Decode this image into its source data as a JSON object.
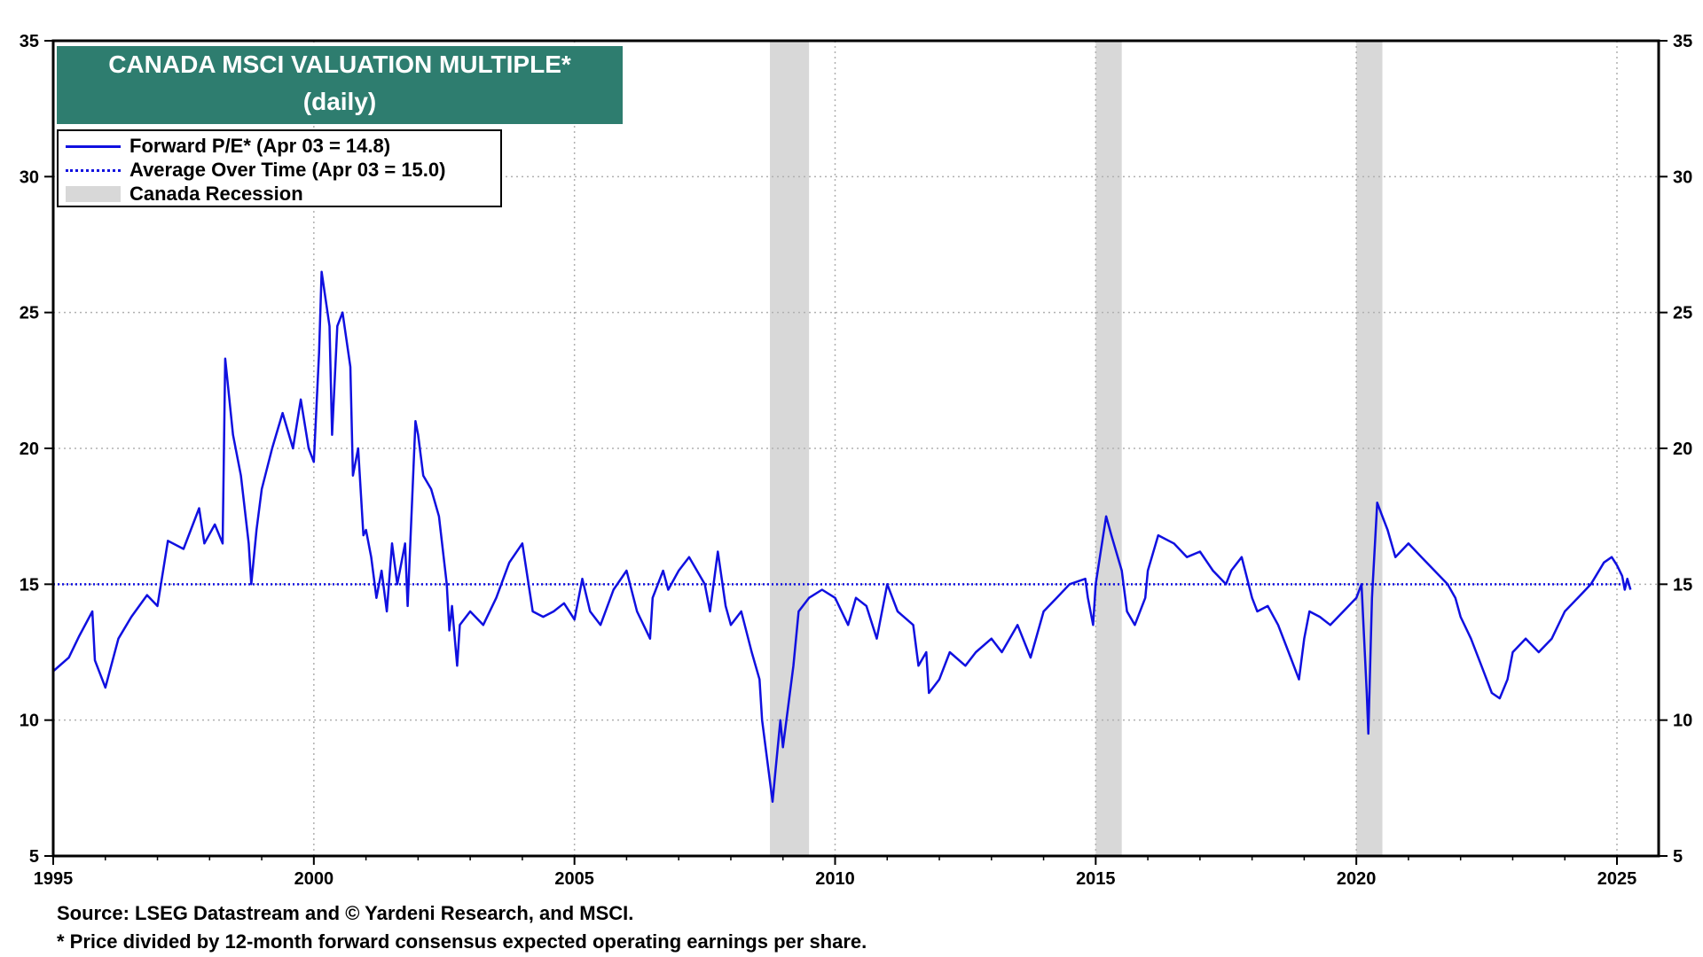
{
  "chart_data": {
    "type": "line",
    "title": "CANADA MSCI VALUATION MULTIPLE*",
    "subtitle": "(daily)",
    "xlim": [
      1995,
      2025.8
    ],
    "ylim": [
      5,
      35
    ],
    "x_ticks": [
      "1995",
      "2000",
      "2005",
      "2010",
      "2015",
      "2020",
      "2025"
    ],
    "y_ticks": [
      "5",
      "10",
      "15",
      "20",
      "25",
      "30",
      "35"
    ],
    "legend_position": "top-left",
    "series": [
      {
        "name": "Forward P/E* (Apr 03 = 14.8)",
        "style": "solid",
        "x": [
          1995.0,
          1995.3,
          1995.5,
          1995.75,
          1995.8,
          1996.0,
          1996.25,
          1996.5,
          1996.8,
          1997.0,
          1997.2,
          1997.5,
          1997.8,
          1997.9,
          1998.1,
          1998.25,
          1998.3,
          1998.45,
          1998.6,
          1998.75,
          1998.8,
          1998.9,
          1999.0,
          1999.2,
          1999.4,
          1999.6,
          1999.75,
          1999.9,
          2000.0,
          2000.1,
          2000.15,
          2000.3,
          2000.35,
          2000.45,
          2000.55,
          2000.7,
          2000.75,
          2000.85,
          2000.95,
          2001.0,
          2001.1,
          2001.2,
          2001.3,
          2001.4,
          2001.5,
          2001.6,
          2001.75,
          2001.8,
          2001.95,
          2002.0,
          2002.1,
          2002.25,
          2002.4,
          2002.55,
          2002.6,
          2002.65,
          2002.75,
          2002.8,
          2003.0,
          2003.25,
          2003.5,
          2003.75,
          2004.0,
          2004.2,
          2004.4,
          2004.6,
          2004.8,
          2005.0,
          2005.15,
          2005.3,
          2005.5,
          2005.75,
          2006.0,
          2006.2,
          2006.45,
          2006.5,
          2006.7,
          2006.8,
          2007.0,
          2007.2,
          2007.5,
          2007.6,
          2007.75,
          2007.9,
          2008.0,
          2008.2,
          2008.4,
          2008.55,
          2008.6,
          2008.7,
          2008.8,
          2008.85,
          2008.95,
          2009.0,
          2009.1,
          2009.2,
          2009.3,
          2009.5,
          2009.75,
          2010.0,
          2010.25,
          2010.4,
          2010.6,
          2010.8,
          2011.0,
          2011.2,
          2011.5,
          2011.6,
          2011.75,
          2011.8,
          2012.0,
          2012.2,
          2012.5,
          2012.7,
          2013.0,
          2013.2,
          2013.5,
          2013.75,
          2014.0,
          2014.25,
          2014.5,
          2014.8,
          2014.85,
          2014.95,
          2015.0,
          2015.2,
          2015.3,
          2015.5,
          2015.6,
          2015.75,
          2015.95,
          2016.0,
          2016.2,
          2016.5,
          2016.75,
          2017.0,
          2017.25,
          2017.5,
          2017.6,
          2017.8,
          2018.0,
          2018.1,
          2018.3,
          2018.5,
          2018.7,
          2018.9,
          2019.0,
          2019.1,
          2019.3,
          2019.5,
          2019.75,
          2020.0,
          2020.1,
          2020.2,
          2020.23,
          2020.3,
          2020.4,
          2020.5,
          2020.6,
          2020.75,
          2021.0,
          2021.25,
          2021.5,
          2021.75,
          2021.9,
          2022.0,
          2022.2,
          2022.4,
          2022.6,
          2022.75,
          2022.9,
          2023.0,
          2023.25,
          2023.5,
          2023.75,
          2024.0,
          2024.25,
          2024.5,
          2024.75,
          2024.9,
          2025.0,
          2025.1,
          2025.15,
          2025.2,
          2025.26
        ],
        "y": [
          11.8,
          12.3,
          13.1,
          14.0,
          12.2,
          11.2,
          13.0,
          13.8,
          14.6,
          14.2,
          16.6,
          16.3,
          17.8,
          16.5,
          17.2,
          16.5,
          23.3,
          20.5,
          19.0,
          16.5,
          15.0,
          17.0,
          18.5,
          20.0,
          21.3,
          20.0,
          21.8,
          20.0,
          19.5,
          23.5,
          26.5,
          24.5,
          20.5,
          24.5,
          25.0,
          23.0,
          19.0,
          20.0,
          16.8,
          17.0,
          16.0,
          14.5,
          15.5,
          14.0,
          16.5,
          15.0,
          16.5,
          14.2,
          21.0,
          20.5,
          19.0,
          18.5,
          17.5,
          15.0,
          13.3,
          14.2,
          12.0,
          13.5,
          14.0,
          13.5,
          14.5,
          15.8,
          16.5,
          14.0,
          13.8,
          14.0,
          14.3,
          13.7,
          15.2,
          14.0,
          13.5,
          14.8,
          15.5,
          14.0,
          13.0,
          14.5,
          15.5,
          14.8,
          15.5,
          16.0,
          15.0,
          14.0,
          16.2,
          14.2,
          13.5,
          14.0,
          12.5,
          11.5,
          10.0,
          8.5,
          7.0,
          8.0,
          10.0,
          9.0,
          10.5,
          12.0,
          14.0,
          14.5,
          14.8,
          14.5,
          13.5,
          14.5,
          14.2,
          13.0,
          15.0,
          14.0,
          13.5,
          12.0,
          12.5,
          11.0,
          11.5,
          12.5,
          12.0,
          12.5,
          13.0,
          12.5,
          13.5,
          12.3,
          14.0,
          14.5,
          15.0,
          15.2,
          14.5,
          13.5,
          15.0,
          17.5,
          16.8,
          15.5,
          14.0,
          13.5,
          14.5,
          15.5,
          16.8,
          16.5,
          16.0,
          16.2,
          15.5,
          15.0,
          15.5,
          16.0,
          14.5,
          14.0,
          14.2,
          13.5,
          12.5,
          11.5,
          13.0,
          14.0,
          13.8,
          13.5,
          14.0,
          14.5,
          15.0,
          11.0,
          9.5,
          14.5,
          18.0,
          17.5,
          17.0,
          16.0,
          16.5,
          16.0,
          15.5,
          15.0,
          14.5,
          13.8,
          13.0,
          12.0,
          11.0,
          10.8,
          11.5,
          12.5,
          13.0,
          12.5,
          13.0,
          14.0,
          14.5,
          15.0,
          15.8,
          16.0,
          15.7,
          15.3,
          14.8,
          15.2,
          14.8
        ]
      },
      {
        "name": "Average Over Time (Apr 03 = 15.0)",
        "style": "dotted",
        "x": [
          1995.0,
          2025.26
        ],
        "y": [
          15.0,
          15.0
        ]
      }
    ],
    "recessions": {
      "name": "Canada Recession",
      "periods": [
        [
          2008.75,
          2009.5
        ],
        [
          2015.0,
          2015.5
        ],
        [
          2020.0,
          2020.5
        ]
      ]
    },
    "colors": {
      "line": "#1010e0",
      "recession": "#d8d8d8",
      "title_bg": "#2e7d6f",
      "grid": "#b0b0b0"
    }
  },
  "footnotes": {
    "source": "Source: LSEG Datastream and © Yardeni Research, and MSCI.",
    "note": "* Price divided by 12-month forward consensus expected operating earnings per share."
  }
}
